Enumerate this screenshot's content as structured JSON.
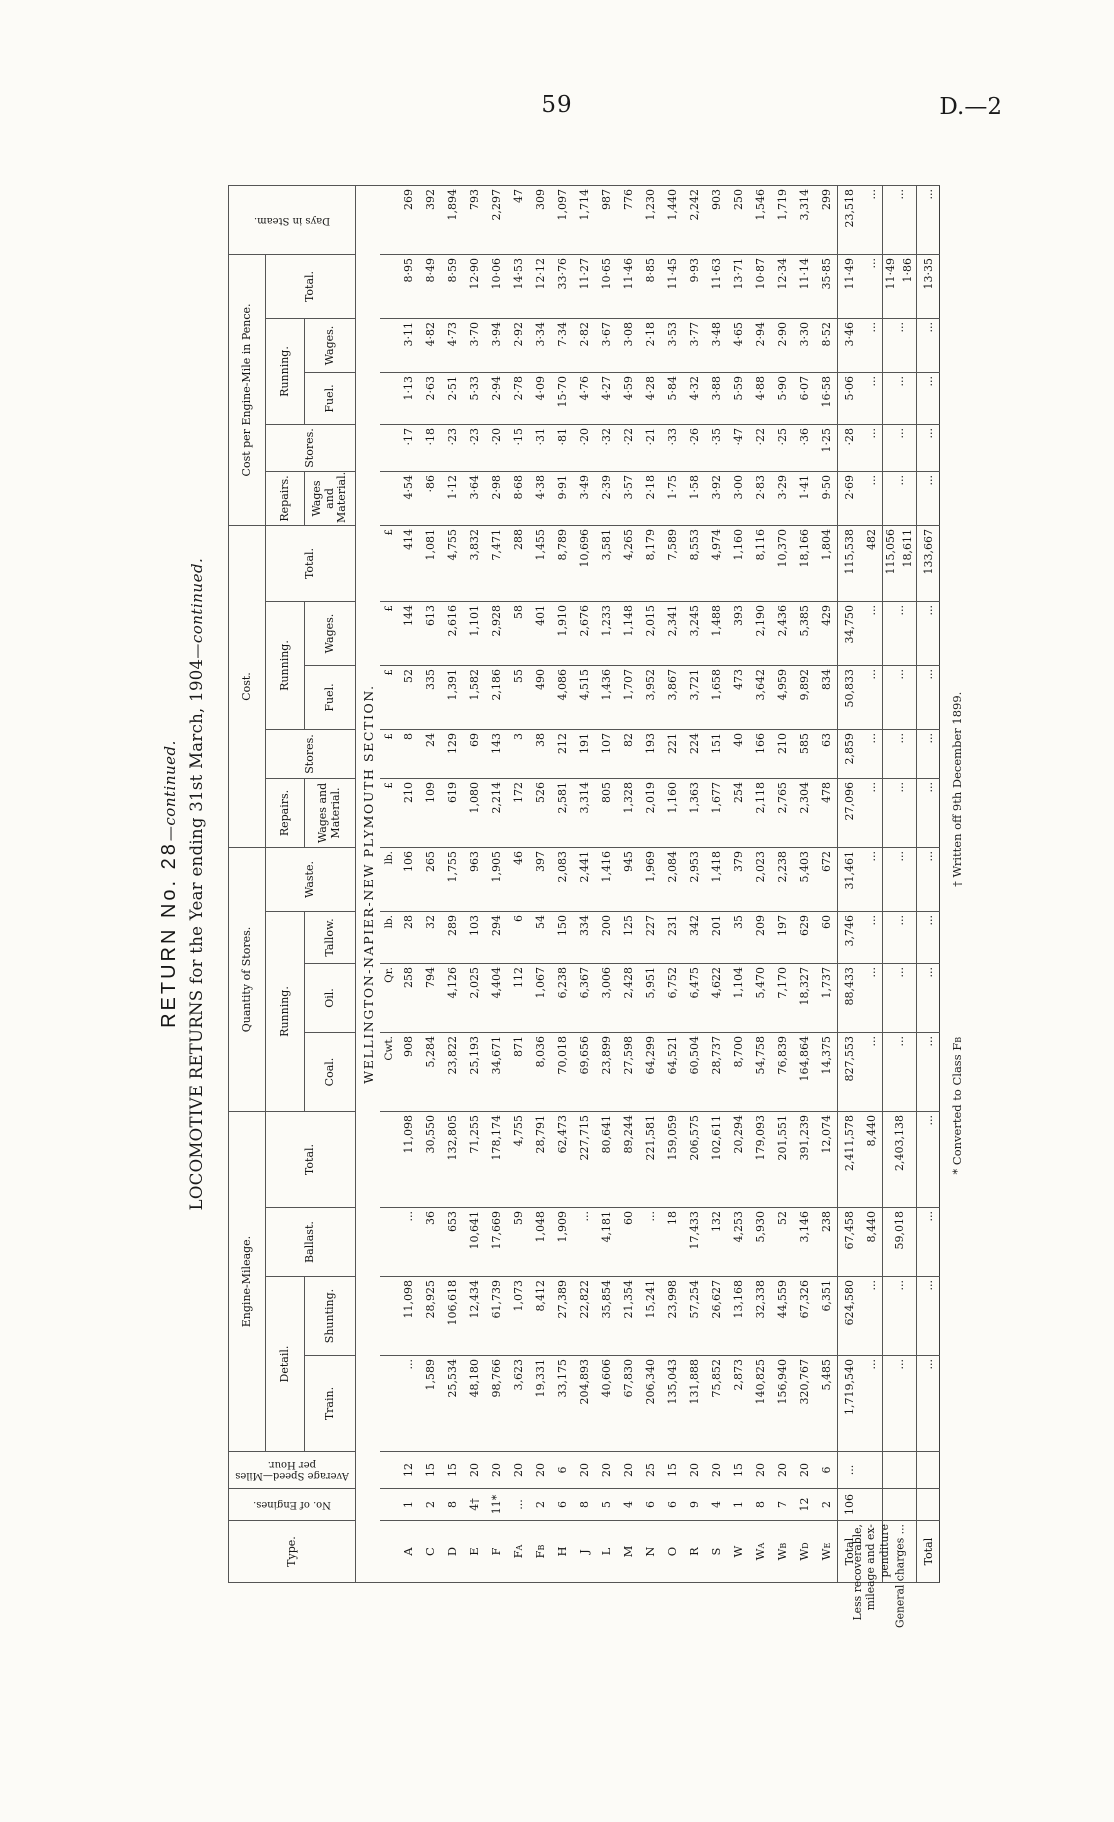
{
  "page": {
    "number": "59",
    "edition_mark": "D.—2"
  },
  "titles": {
    "return_main": "RETURN No. 28",
    "return_continued": "—continued.",
    "main_title": "LOCOMOTIVE RETURNS for the Year ending 31st March, 1904",
    "main_continued": "—continued.",
    "section_heading": "WELLINGTON-NAPIER-NEW PLYMOUTH SECTION."
  },
  "header": {
    "type": "Type.",
    "no_of_engines": "No. of Engines.",
    "avg_speed": "Average Speed—Miles per Hour.",
    "engine_mileage": "Engine-Mileage.",
    "detail": "Detail.",
    "train": "Train.",
    "shunting": "Shunting.",
    "ballast": "Ballast.",
    "total": "Total.",
    "quantity_of_stores": "Quantity of Stores.",
    "running": "Running.",
    "coal": "Coal.",
    "oil": "Oil.",
    "tallow": "Tallow.",
    "waste": "Waste.",
    "cost": "Cost.",
    "repairs": "Repairs.",
    "wages_and_material": "Wages and Material.",
    "stores": "Stores.",
    "fuel": "Fuel.",
    "wages": "Wages.",
    "cost_per_mile": "Cost per Engine-Mile in Pence.",
    "days_in_steam": "Days in Steam."
  },
  "units": {
    "coal": "Cwt.",
    "oil": "Qr.",
    "tallow": "lb.",
    "waste": "lb.",
    "currency": "£"
  },
  "table": {
    "types": [
      "A",
      "C",
      "D",
      "E",
      "F",
      "F|A",
      "F|B",
      "H",
      "J",
      "L",
      "M",
      "N",
      "O",
      "R",
      "S",
      "W",
      "W|A",
      "W|B",
      "W|D",
      "W|E"
    ],
    "columns": {
      "engines": [
        "1",
        "2",
        "8",
        "4†",
        "11*",
        "...",
        "2",
        "6",
        "8",
        "5",
        "4",
        "6",
        "6",
        "9",
        "4",
        "1",
        "8",
        "7",
        "12",
        "2"
      ],
      "speed": [
        "12",
        "15",
        "15",
        "20",
        "20",
        "20",
        "20",
        "6",
        "20",
        "20",
        "20",
        "25",
        "15",
        "20",
        "20",
        "15",
        "20",
        "20",
        "20",
        "6"
      ],
      "train": [
        "...",
        "1,589",
        "25,534",
        "48,180",
        "98,766",
        "3,623",
        "19,331",
        "33,175",
        "204,893",
        "40,606",
        "67,830",
        "206,340",
        "135,043",
        "131,888",
        "75,852",
        "2,873",
        "140,825",
        "156,940",
        "320,767",
        "5,485"
      ],
      "shunting": [
        "11,098",
        "28,925",
        "106,618",
        "12,434",
        "61,739",
        "1,073",
        "8,412",
        "27,389",
        "22,822",
        "35,854",
        "21,354",
        "15,241",
        "23,998",
        "57,254",
        "26,627",
        "13,168",
        "32,338",
        "44,559",
        "67,326",
        "6,351"
      ],
      "ballast": [
        "...",
        "36",
        "653",
        "10,641",
        "17,669",
        "59",
        "1,048",
        "1,909",
        "...",
        "4,181",
        "60",
        "...",
        "18",
        "17,433",
        "132",
        "4,253",
        "5,930",
        "52",
        "3,146",
        "238"
      ],
      "mileage_total": [
        "11,098",
        "30,550",
        "132,805",
        "71,255",
        "178,174",
        "4,755",
        "28,791",
        "62,473",
        "227,715",
        "80,641",
        "89,244",
        "221,581",
        "159,059",
        "206,575",
        "102,611",
        "20,294",
        "179,093",
        "201,551",
        "391,239",
        "12,074"
      ],
      "coal": [
        "908",
        "5,284",
        "23,822",
        "25,193",
        "34,671",
        "871",
        "8,036",
        "70,018",
        "69,656",
        "23,899",
        "27,598",
        "64,299",
        "64,521",
        "60,504",
        "28,737",
        "8,700",
        "54,758",
        "76,839",
        "164,864",
        "14,375"
      ],
      "oil": [
        "258",
        "794",
        "4,126",
        "2,025",
        "4,404",
        "112",
        "1,067",
        "6,238",
        "6,367",
        "3,006",
        "2,428",
        "5,951",
        "6,752",
        "6,475",
        "4,622",
        "1,104",
        "5,470",
        "7,170",
        "18,327",
        "1,737"
      ],
      "tallow": [
        "28",
        "32",
        "289",
        "103",
        "294",
        "6",
        "54",
        "150",
        "334",
        "200",
        "125",
        "227",
        "231",
        "342",
        "201",
        "35",
        "209",
        "197",
        "629",
        "60"
      ],
      "waste": [
        "106",
        "265",
        "1,755",
        "963",
        "1,905",
        "46",
        "397",
        "2,083",
        "2,441",
        "1,416",
        "945",
        "1,969",
        "2,084",
        "2,953",
        "1,418",
        "379",
        "2,023",
        "2,238",
        "5,403",
        "672"
      ],
      "cost_wm": [
        "210",
        "109",
        "619",
        "1,080",
        "2,214",
        "172",
        "526",
        "2,581",
        "3,314",
        "805",
        "1,328",
        "2,019",
        "1,160",
        "1,363",
        "1,677",
        "254",
        "2,118",
        "2,765",
        "2,304",
        "478"
      ],
      "cost_stores": [
        "8",
        "24",
        "129",
        "69",
        "143",
        "3",
        "38",
        "212",
        "191",
        "107",
        "82",
        "193",
        "221",
        "224",
        "151",
        "40",
        "166",
        "210",
        "585",
        "63"
      ],
      "cost_fuel": [
        "52",
        "335",
        "1,391",
        "1,582",
        "2,186",
        "55",
        "490",
        "4,086",
        "4,515",
        "1,436",
        "1,707",
        "3,952",
        "3,867",
        "3,721",
        "1,658",
        "473",
        "3,642",
        "4,959",
        "9,892",
        "834"
      ],
      "cost_wages": [
        "144",
        "613",
        "2,616",
        "1,101",
        "2,928",
        "58",
        "401",
        "1,910",
        "2,676",
        "1,233",
        "1,148",
        "2,015",
        "2,341",
        "3,245",
        "1,488",
        "393",
        "2,190",
        "2,436",
        "5,385",
        "429"
      ],
      "cost_total": [
        "414",
        "1,081",
        "4,755",
        "3,832",
        "7,471",
        "288",
        "1,455",
        "8,789",
        "10,696",
        "3,581",
        "4,265",
        "8,179",
        "7,589",
        "8,553",
        "4,974",
        "1,160",
        "8,116",
        "10,370",
        "18,166",
        "1,804"
      ],
      "pence_wm": [
        "4·54",
        "·86",
        "1·12",
        "3·64",
        "2·98",
        "8·68",
        "4·38",
        "9·91",
        "3·49",
        "2·39",
        "3·57",
        "2·18",
        "1·75",
        "1·58",
        "3·92",
        "3·00",
        "2·83",
        "3·29",
        "1·41",
        "9·50"
      ],
      "pence_stores": [
        "·17",
        "·18",
        "·23",
        "·23",
        "·20",
        "·15",
        "·31",
        "·81",
        "·20",
        "·32",
        "·22",
        "·21",
        "·33",
        "·26",
        "·35",
        "·47",
        "·22",
        "·25",
        "·36",
        "1·25"
      ],
      "pence_fuel": [
        "1·13",
        "2·63",
        "2·51",
        "5·33",
        "2·94",
        "2·78",
        "4·09",
        "15·70",
        "4·76",
        "4·27",
        "4·59",
        "4·28",
        "5·84",
        "4·32",
        "3·88",
        "5·59",
        "4·88",
        "5·90",
        "6·07",
        "16·58"
      ],
      "pence_wages": [
        "3·11",
        "4·82",
        "4·73",
        "3·70",
        "3·94",
        "2·92",
        "3·34",
        "7·34",
        "2·82",
        "3·67",
        "3·08",
        "2·18",
        "3·53",
        "3·77",
        "3·48",
        "4·65",
        "2·94",
        "2·90",
        "3·30",
        "8·52"
      ],
      "pence_total": [
        "8·95",
        "8·49",
        "8·59",
        "12·90",
        "10·06",
        "14·53",
        "12·12",
        "33·76",
        "11·27",
        "10·65",
        "11·46",
        "8·85",
        "11·45",
        "9·93",
        "11·63",
        "13·71",
        "10·87",
        "12·34",
        "11·14",
        "35·85"
      ],
      "days": [
        "269",
        "392",
        "1,894",
        "793",
        "2,297",
        "47",
        "309",
        "1,097",
        "1,714",
        "987",
        "776",
        "1,230",
        "1,440",
        "2,242",
        "903",
        "250",
        "1,546",
        "1,719",
        "3,314",
        "299"
      ]
    },
    "summary_rows": [
      {
        "label": "Total",
        "values": {
          "engines": "106",
          "speed": "...",
          "train": "1,719,540",
          "shunting": "624,580",
          "ballast": "67,458",
          "mileage_total": "2,411,578",
          "coal": "827,553",
          "oil": "88,433",
          "tallow": "3,746",
          "waste": "31,461",
          "cost_wm": "27,096",
          "cost_stores": "2,859",
          "cost_fuel": "50,833",
          "cost_wages": "34,750",
          "cost_total": "115,538",
          "pence_wm": "2·69",
          "pence_stores": "·28",
          "pence_fuel": "5·06",
          "pence_wages": "3·46",
          "pence_total": "11·49",
          "days": "23,518"
        }
      },
      {
        "label": "Less recoverable, mileage and ex- penditure",
        "values": {
          "engines": "",
          "speed": "",
          "train": "...",
          "shunting": "...",
          "ballast": "8,440",
          "mileage_total": "8,440",
          "coal": "...",
          "oil": "...",
          "tallow": "...",
          "waste": "...",
          "cost_wm": "...",
          "cost_stores": "...",
          "cost_fuel": "...",
          "cost_wages": "...",
          "cost_total": "482",
          "pence_wm": "...",
          "pence_stores": "...",
          "pence_fuel": "...",
          "pence_wages": "...",
          "pence_total": "...",
          "days": "..."
        }
      },
      {
        "label": "General charges ...",
        "values": {
          "engines": "",
          "speed": "",
          "train": "...",
          "shunting": "...",
          "ballast": "59,018",
          "mileage_total": "2,403,138",
          "coal": "...",
          "oil": "...",
          "tallow": "...",
          "waste": "...",
          "cost_wm": "...",
          "cost_stores": "...",
          "cost_fuel": "...",
          "cost_wages": "...",
          "cost_total": [
            "115,056",
            "18,611"
          ],
          "pence_wm": "...",
          "pence_stores": "...",
          "pence_fuel": "...",
          "pence_wages": "...",
          "pence_total": [
            "11·49",
            "1·86"
          ],
          "days": "..."
        }
      },
      {
        "label": "Total",
        "values": {
          "engines": "",
          "speed": "",
          "train": "...",
          "shunting": "...",
          "ballast": "...",
          "mileage_total": "...",
          "coal": "...",
          "oil": "...",
          "tallow": "...",
          "waste": "...",
          "cost_wm": "...",
          "cost_stores": "...",
          "cost_fuel": "...",
          "cost_wages": "...",
          "cost_total": "133,667",
          "pence_wm": "...",
          "pence_stores": "...",
          "pence_fuel": "...",
          "pence_wages": "...",
          "pence_total": "13·35",
          "days": "..."
        }
      }
    ]
  },
  "footnotes": {
    "left_main": "* Converted to Class F",
    "left_sub": "B",
    "right": "† Written off 9th December 1899."
  }
}
